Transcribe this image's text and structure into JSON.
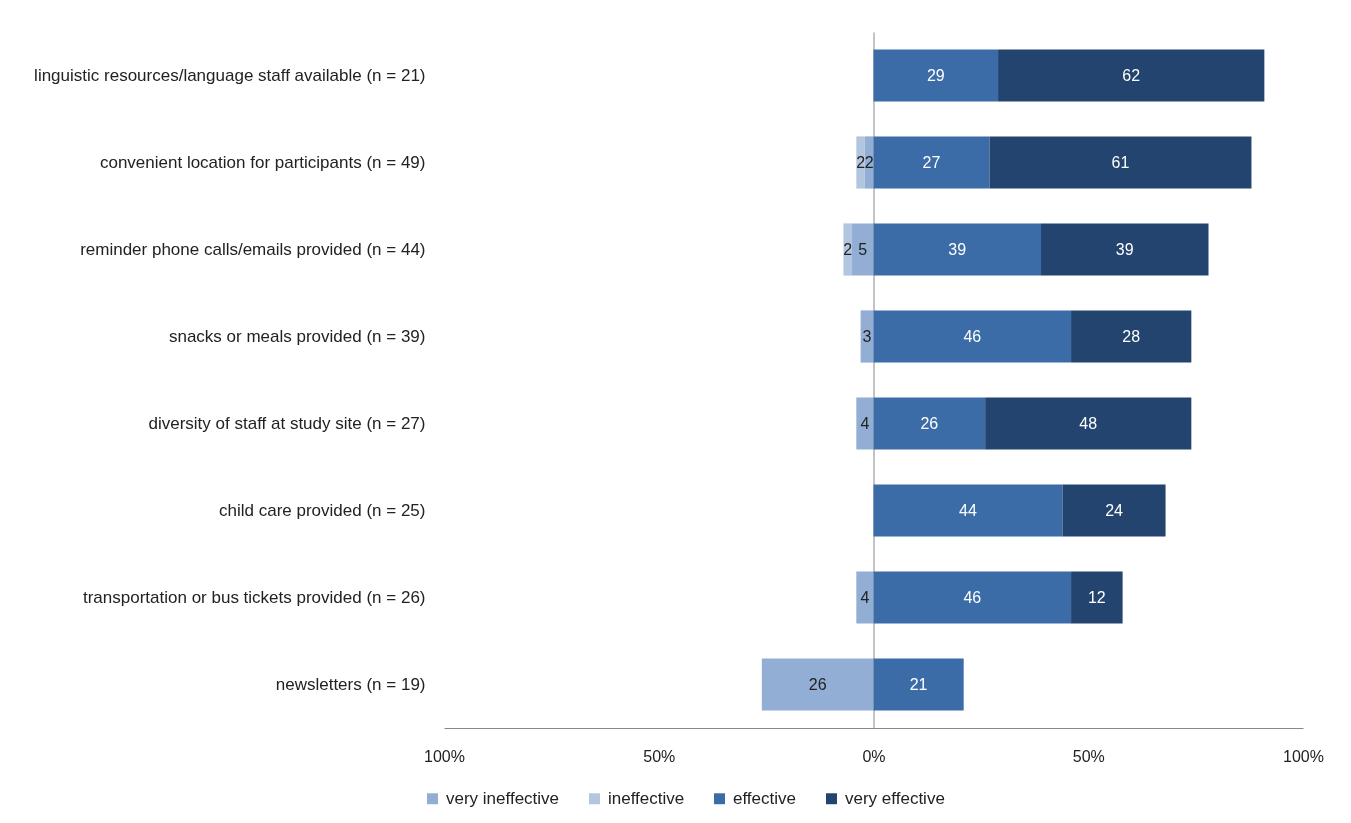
{
  "chart_data": {
    "type": "bar",
    "orientation": "horizontal",
    "categories": [
      "linguistic resources/language staff available (n = 21)",
      "convenient location for participants (n = 49)",
      "reminder phone calls/emails provided (n = 44)",
      "snacks or meals provided (n = 39)",
      "diversity of staff at study site (n = 27)",
      "child care provided (n = 25)",
      "transportation or bus tickets provided (n = 26)",
      "newsletters (n = 19)"
    ],
    "series": [
      {
        "name": "very ineffective",
        "color": "#93aed5",
        "values": [
          null,
          2,
          5,
          3,
          4,
          null,
          4,
          26
        ],
        "base": [
          null,
          -2,
          -5,
          -3,
          -4,
          null,
          -4,
          -26
        ],
        "value_labels": [
          null,
          "2",
          "5",
          "3",
          "4",
          null,
          "4",
          "26"
        ]
      },
      {
        "name": "ineffective",
        "color": "#b3c6e0",
        "values": [
          null,
          2,
          2,
          null,
          null,
          null,
          null,
          null
        ],
        "base": [
          null,
          -4,
          -7,
          null,
          null,
          null,
          null,
          null
        ],
        "value_labels": [
          null,
          "2",
          "2",
          null,
          null,
          null,
          null,
          null
        ]
      },
      {
        "name": "effective",
        "color": "#3c6ca8",
        "values": [
          29,
          27,
          39,
          46,
          26,
          44,
          46,
          21
        ],
        "base": [
          0,
          0,
          0,
          0,
          0,
          0,
          0,
          0
        ],
        "value_labels": [
          "29",
          "27",
          "39",
          "46",
          "26",
          "44",
          "46",
          "21"
        ]
      },
      {
        "name": "very effective",
        "color": "#22446e",
        "values": [
          62,
          61,
          39,
          28,
          48,
          24,
          12,
          null
        ],
        "base": [
          29,
          27,
          39,
          46,
          26,
          44,
          46,
          null
        ],
        "value_labels": [
          "62",
          "61",
          "39",
          "28",
          "48",
          "24",
          "12",
          null
        ]
      }
    ],
    "xlim": [
      -100,
      100
    ],
    "xticks": [
      {
        "value": -100,
        "label": "100%"
      },
      {
        "value": -50,
        "label": "50%"
      },
      {
        "value": 0,
        "label": "0%"
      },
      {
        "value": 50,
        "label": "50%"
      },
      {
        "value": 100,
        "label": "100%"
      }
    ],
    "legend": "bottom"
  }
}
